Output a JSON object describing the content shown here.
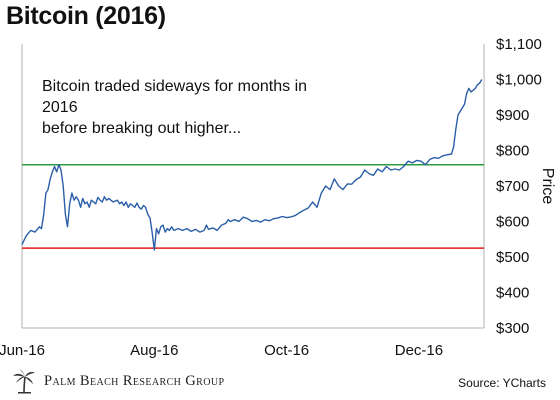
{
  "chart_data": {
    "type": "line",
    "title": "Bitcoin (2016)",
    "ylabel": "Price",
    "xlabel": "",
    "ylim": [
      300,
      1100
    ],
    "y_ticks": [
      "$1,100",
      "$1,000",
      "$900",
      "$800",
      "$700",
      "$600",
      "$500",
      "$400",
      "$300"
    ],
    "y_tick_values": [
      1100,
      1000,
      900,
      800,
      700,
      600,
      500,
      400,
      300
    ],
    "x_ticks": [
      "Jun-16",
      "Aug-16",
      "Oct-16",
      "Dec-16"
    ],
    "x_tick_days": [
      0,
      61,
      122,
      183
    ],
    "x_range_days": [
      0,
      213
    ],
    "grid": false,
    "reference_lines": [
      {
        "y": 760,
        "color": "#2e9a3e"
      },
      {
        "y": 525,
        "color": "#e21b1b"
      }
    ],
    "series": [
      {
        "color": "#2a5fa8",
        "points": [
          [
            0,
            535
          ],
          [
            2,
            560
          ],
          [
            4,
            575
          ],
          [
            6,
            570
          ],
          [
            8,
            585
          ],
          [
            9,
            580
          ],
          [
            10,
            620
          ],
          [
            11,
            680
          ],
          [
            12,
            690
          ],
          [
            13,
            720
          ],
          [
            14,
            740
          ],
          [
            15,
            755
          ],
          [
            16,
            740
          ],
          [
            17,
            760
          ],
          [
            18,
            745
          ],
          [
            19,
            700
          ],
          [
            20,
            620
          ],
          [
            21,
            585
          ],
          [
            22,
            650
          ],
          [
            23,
            680
          ],
          [
            24,
            660
          ],
          [
            25,
            670
          ],
          [
            26,
            660
          ],
          [
            27,
            640
          ],
          [
            28,
            665
          ],
          [
            29,
            650
          ],
          [
            30,
            655
          ],
          [
            31,
            640
          ],
          [
            32,
            660
          ],
          [
            33,
            655
          ],
          [
            34,
            650
          ],
          [
            35,
            668
          ],
          [
            36,
            660
          ],
          [
            37,
            655
          ],
          [
            38,
            670
          ],
          [
            39,
            660
          ],
          [
            40,
            665
          ],
          [
            41,
            660
          ],
          [
            42,
            655
          ],
          [
            44,
            660
          ],
          [
            45,
            650
          ],
          [
            46,
            655
          ],
          [
            47,
            645
          ],
          [
            48,
            655
          ],
          [
            49,
            640
          ],
          [
            50,
            650
          ],
          [
            51,
            645
          ],
          [
            52,
            640
          ],
          [
            53,
            652
          ],
          [
            54,
            640
          ],
          [
            55,
            635
          ],
          [
            56,
            645
          ],
          [
            57,
            640
          ],
          [
            58,
            620
          ],
          [
            59,
            610
          ],
          [
            60,
            570
          ],
          [
            61,
            520
          ],
          [
            62,
            580
          ],
          [
            63,
            565
          ],
          [
            64,
            585
          ],
          [
            65,
            590
          ],
          [
            66,
            570
          ],
          [
            67,
            580
          ],
          [
            68,
            575
          ],
          [
            69,
            585
          ],
          [
            70,
            575
          ],
          [
            72,
            580
          ],
          [
            74,
            575
          ],
          [
            76,
            580
          ],
          [
            78,
            572
          ],
          [
            80,
            578
          ],
          [
            82,
            570
          ],
          [
            84,
            575
          ],
          [
            85,
            590
          ],
          [
            86,
            578
          ],
          [
            88,
            582
          ],
          [
            90,
            575
          ],
          [
            92,
            590
          ],
          [
            94,
            595
          ],
          [
            95,
            605
          ],
          [
            96,
            600
          ],
          [
            98,
            605
          ],
          [
            100,
            600
          ],
          [
            102,
            612
          ],
          [
            104,
            608
          ],
          [
            106,
            600
          ],
          [
            108,
            603
          ],
          [
            110,
            598
          ],
          [
            112,
            605
          ],
          [
            114,
            602
          ],
          [
            116,
            608
          ],
          [
            118,
            610
          ],
          [
            120,
            614
          ],
          [
            122,
            611
          ],
          [
            124,
            613
          ],
          [
            126,
            617
          ],
          [
            128,
            625
          ],
          [
            130,
            632
          ],
          [
            132,
            638
          ],
          [
            134,
            655
          ],
          [
            136,
            640
          ],
          [
            138,
            680
          ],
          [
            140,
            700
          ],
          [
            142,
            690
          ],
          [
            144,
            720
          ],
          [
            146,
            700
          ],
          [
            148,
            690
          ],
          [
            150,
            706
          ],
          [
            152,
            705
          ],
          [
            154,
            718
          ],
          [
            156,
            725
          ],
          [
            158,
            745
          ],
          [
            160,
            735
          ],
          [
            162,
            730
          ],
          [
            164,
            748
          ],
          [
            166,
            740
          ],
          [
            168,
            755
          ],
          [
            170,
            745
          ],
          [
            172,
            748
          ],
          [
            174,
            745
          ],
          [
            176,
            755
          ],
          [
            178,
            770
          ],
          [
            180,
            765
          ],
          [
            182,
            772
          ],
          [
            184,
            770
          ],
          [
            186,
            760
          ],
          [
            188,
            775
          ],
          [
            190,
            780
          ],
          [
            192,
            778
          ],
          [
            194,
            785
          ],
          [
            196,
            788
          ],
          [
            198,
            790
          ],
          [
            199,
            810
          ],
          [
            200,
            860
          ],
          [
            201,
            900
          ],
          [
            202,
            910
          ],
          [
            203,
            920
          ],
          [
            204,
            930
          ],
          [
            205,
            960
          ],
          [
            206,
            975
          ],
          [
            207,
            965
          ],
          [
            208,
            970
          ],
          [
            209,
            975
          ],
          [
            210,
            985
          ],
          [
            211,
            990
          ],
          [
            212,
            1000
          ]
        ]
      }
    ],
    "annotation": [
      "Bitcoin traded sideways for months in 2016",
      "before breaking out higher..."
    ]
  },
  "footer": {
    "logo_text": "Palm Beach Research Group",
    "source": "Source: YCharts"
  },
  "colors": {
    "line": "#2a5fa8",
    "resistance": "#2e9a3e",
    "support": "#e21b1b",
    "axis": "#999999"
  }
}
